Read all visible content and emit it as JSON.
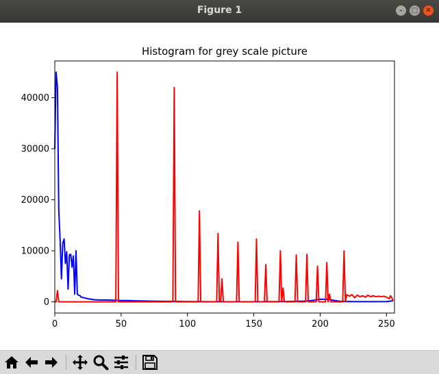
{
  "window": {
    "title": "Figure 1",
    "minimize_glyph": "–",
    "maximize_glyph": "□",
    "close_glyph": "✕"
  },
  "toolbar": {
    "buttons": [
      {
        "icon": "home-icon"
      },
      {
        "icon": "back-arrow-icon"
      },
      {
        "icon": "forward-arrow-icon"
      },
      {
        "icon": "pan-icon"
      },
      {
        "icon": "zoom-icon"
      },
      {
        "icon": "subplots-config-icon"
      },
      {
        "icon": "save-icon"
      }
    ]
  },
  "colors": {
    "series_blue": "#0000ff",
    "series_red": "#ff0000",
    "titlebar": "#3c3b37",
    "close_button": "#e95420",
    "toolbar_bg": "#d9d9d9"
  },
  "chart_data": {
    "type": "line",
    "title": "Histogram for grey scale picture",
    "xlabel": "",
    "ylabel": "",
    "xlim": [
      0,
      256
    ],
    "ylim": [
      -2200,
      47200
    ],
    "xticks": [
      0,
      50,
      100,
      150,
      200,
      250
    ],
    "yticks": [
      0,
      10000,
      20000,
      30000,
      40000
    ],
    "xtick_labels": [
      "0",
      "50",
      "100",
      "150",
      "200",
      "250"
    ],
    "ytick_labels": [
      "0",
      "10000",
      "20000",
      "30000",
      "40000"
    ],
    "grid": false,
    "legend": "none",
    "series": [
      {
        "color": "#0000ff",
        "points": [
          [
            0,
            30000
          ],
          [
            1,
            45000
          ],
          [
            2,
            42000
          ],
          [
            3,
            18000
          ],
          [
            4,
            12000
          ],
          [
            5,
            4500
          ],
          [
            6,
            11500
          ],
          [
            7,
            12300
          ],
          [
            8,
            7500
          ],
          [
            9,
            9800
          ],
          [
            10,
            2500
          ],
          [
            11,
            9200
          ],
          [
            12,
            9300
          ],
          [
            13,
            6800
          ],
          [
            14,
            9000
          ],
          [
            15,
            1500
          ],
          [
            16,
            10000
          ],
          [
            17,
            1500
          ],
          [
            18,
            1300
          ],
          [
            19,
            1200
          ],
          [
            20,
            900
          ],
          [
            22,
            800
          ],
          [
            25,
            600
          ],
          [
            30,
            400
          ],
          [
            35,
            350
          ],
          [
            40,
            350
          ],
          [
            45,
            300
          ],
          [
            50,
            250
          ],
          [
            55,
            250
          ],
          [
            60,
            200
          ],
          [
            70,
            150
          ],
          [
            80,
            100
          ],
          [
            90,
            80
          ],
          [
            100,
            50
          ],
          [
            110,
            30
          ],
          [
            120,
            20
          ],
          [
            130,
            20
          ],
          [
            140,
            20
          ],
          [
            150,
            20
          ],
          [
            160,
            30
          ],
          [
            170,
            50
          ],
          [
            180,
            80
          ],
          [
            190,
            150
          ],
          [
            195,
            300
          ],
          [
            200,
            500
          ],
          [
            205,
            500
          ],
          [
            210,
            300
          ],
          [
            215,
            100
          ],
          [
            220,
            50
          ],
          [
            230,
            30
          ],
          [
            240,
            30
          ],
          [
            250,
            50
          ],
          [
            255,
            200
          ]
        ]
      },
      {
        "color": "#ff0000",
        "points": [
          [
            0,
            0
          ],
          [
            1,
            0
          ],
          [
            2,
            2200
          ],
          [
            3,
            0
          ],
          [
            46,
            0
          ],
          [
            47,
            45000
          ],
          [
            48,
            0
          ],
          [
            89,
            0
          ],
          [
            90,
            42000
          ],
          [
            91,
            0
          ],
          [
            108,
            0
          ],
          [
            109,
            17800
          ],
          [
            110,
            0
          ],
          [
            122,
            0
          ],
          [
            123,
            13400
          ],
          [
            124,
            0
          ],
          [
            125,
            0
          ],
          [
            126,
            4500
          ],
          [
            127,
            0
          ],
          [
            137,
            0
          ],
          [
            138,
            11700
          ],
          [
            139,
            0
          ],
          [
            151,
            0
          ],
          [
            152,
            12300
          ],
          [
            153,
            0
          ],
          [
            158,
            0
          ],
          [
            159,
            7300
          ],
          [
            160,
            0
          ],
          [
            169,
            0
          ],
          [
            170,
            10000
          ],
          [
            171,
            0
          ],
          [
            172,
            2700
          ],
          [
            173,
            0
          ],
          [
            181,
            0
          ],
          [
            182,
            9200
          ],
          [
            183,
            0
          ],
          [
            189,
            0
          ],
          [
            190,
            9300
          ],
          [
            191,
            0
          ],
          [
            197,
            0
          ],
          [
            198,
            7000
          ],
          [
            199,
            0
          ],
          [
            204,
            0
          ],
          [
            205,
            7700
          ],
          [
            206,
            0
          ],
          [
            207,
            1500
          ],
          [
            208,
            0
          ],
          [
            217,
            0
          ],
          [
            218,
            10000
          ],
          [
            219,
            0
          ],
          [
            220,
            1400
          ],
          [
            222,
            1100
          ],
          [
            224,
            1400
          ],
          [
            226,
            800
          ],
          [
            228,
            1300
          ],
          [
            230,
            1000
          ],
          [
            232,
            1200
          ],
          [
            234,
            900
          ],
          [
            236,
            1300
          ],
          [
            238,
            1000
          ],
          [
            240,
            1200
          ],
          [
            242,
            1000
          ],
          [
            244,
            1100
          ],
          [
            246,
            1000
          ],
          [
            248,
            1100
          ],
          [
            250,
            900
          ],
          [
            252,
            600
          ],
          [
            253,
            1200
          ],
          [
            254,
            800
          ],
          [
            255,
            200
          ]
        ]
      }
    ]
  }
}
